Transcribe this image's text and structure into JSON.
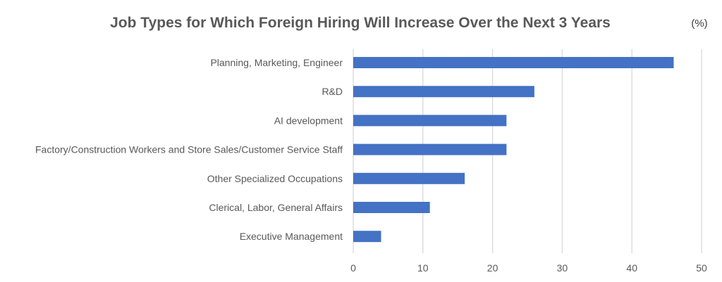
{
  "chart_data": {
    "type": "bar",
    "orientation": "horizontal",
    "title": "Job Types for Which Foreign Hiring Will Increase Over the Next 3 Years",
    "unit_label": "(%)",
    "categories": [
      "Planning, Marketing, Engineer",
      "R&D",
      "AI development",
      "Factory/Construction Workers and Store Sales/Customer Service Staff",
      "Other Specialized Occupations",
      "Clerical, Labor, General Affairs",
      "Executive Management"
    ],
    "values": [
      46,
      26,
      22,
      22,
      16,
      11,
      4
    ],
    "xlim": [
      0,
      50
    ],
    "xticks": [
      0,
      10,
      20,
      30,
      40,
      50
    ],
    "grid": true,
    "legend": "none",
    "bar_color": "#4472c4"
  }
}
